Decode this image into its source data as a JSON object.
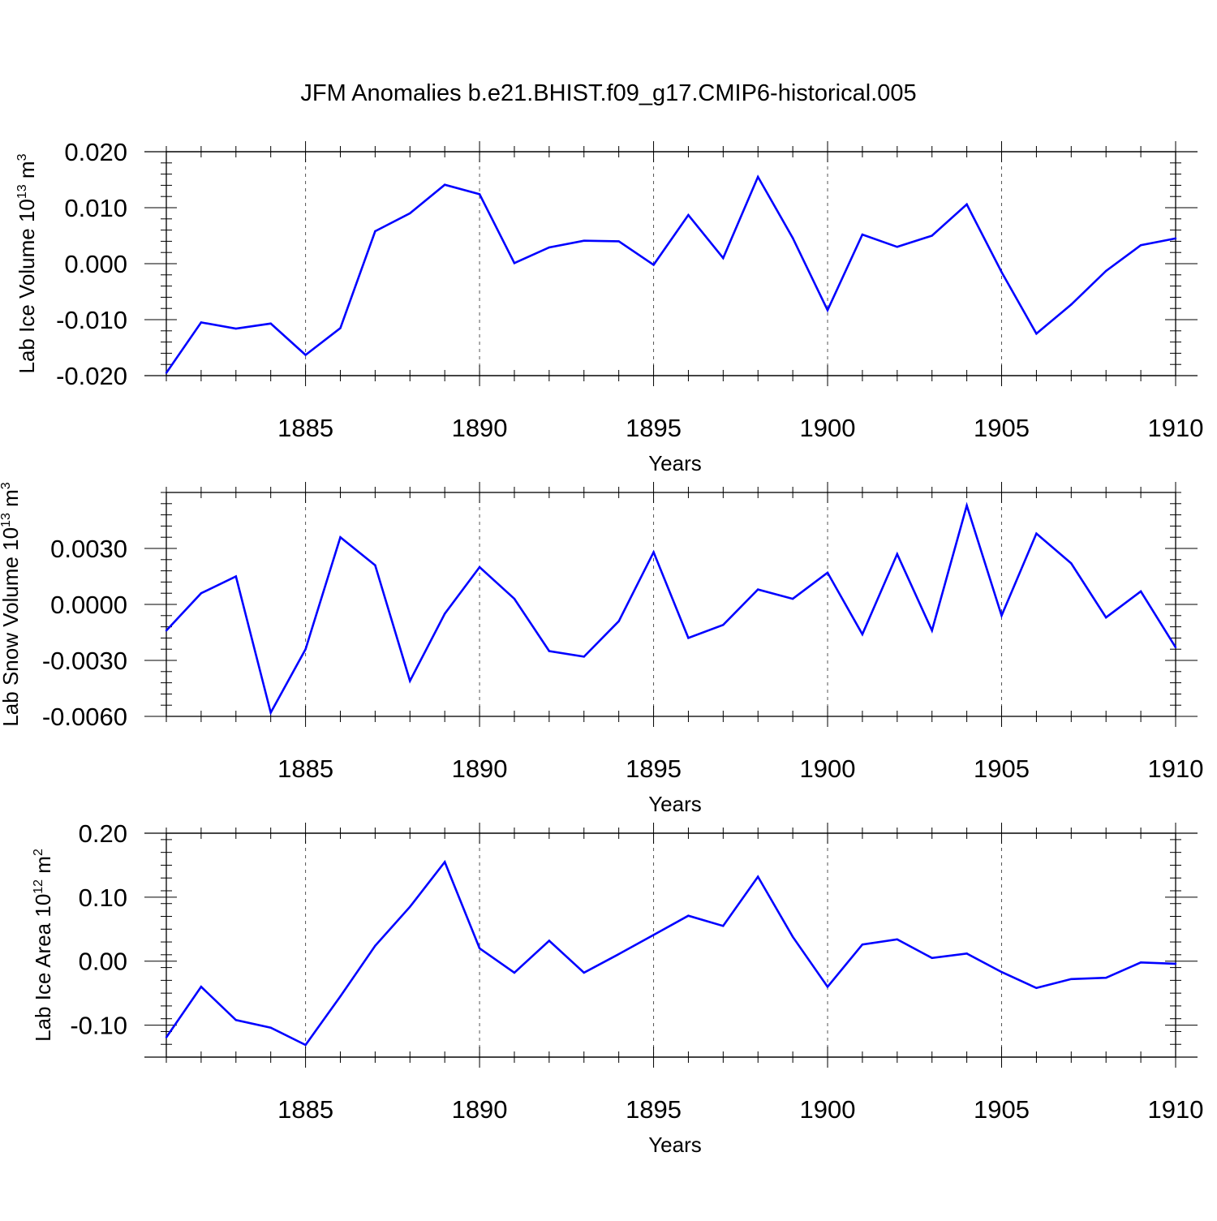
{
  "title": "JFM Anomalies b.e21.BHIST.f09_g17.CMIP6-historical.005",
  "colors": {
    "line": "#0000ff",
    "axis": "#000000",
    "grid": "#555555"
  },
  "chart_data": [
    {
      "type": "line",
      "ylabel": "Lab Ice Volume 10",
      "ylabel_exp": "13",
      "ylabel_unit": " m",
      "ylabel_unit_exp": "3",
      "xlabel": "Years",
      "xlim": [
        1881,
        1910
      ],
      "ylim": [
        -0.02,
        0.02
      ],
      "yticks": [
        -0.02,
        -0.01,
        0.0,
        0.01,
        0.02
      ],
      "ytick_labels": [
        "-0.020",
        "-0.010",
        "0.000",
        "0.010",
        "0.020"
      ],
      "xticks": [
        1885,
        1890,
        1895,
        1900,
        1905,
        1910
      ],
      "xtick_labels": [
        "1885",
        "1890",
        "1895",
        "1900",
        "1905",
        "1910"
      ],
      "grid_x": [
        1885,
        1890,
        1895,
        1900,
        1905
      ],
      "x": [
        1881,
        1882,
        1883,
        1884,
        1885,
        1886,
        1887,
        1888,
        1889,
        1890,
        1891,
        1892,
        1893,
        1894,
        1895,
        1896,
        1897,
        1898,
        1899,
        1900,
        1901,
        1902,
        1903,
        1904,
        1905,
        1906,
        1907,
        1908,
        1909,
        1910
      ],
      "series": [
        {
          "name": "Lab Ice Volume",
          "values": [
            -0.0195,
            -0.0105,
            -0.0116,
            -0.0107,
            -0.0163,
            -0.0115,
            0.0058,
            0.009,
            0.0141,
            0.0124,
            0.0001,
            0.0029,
            0.0041,
            0.004,
            -0.0002,
            0.0087,
            0.001,
            0.0155,
            0.0046,
            -0.0083,
            0.0052,
            0.003,
            0.005,
            0.0106,
            -0.0015,
            -0.0125,
            -0.0073,
            -0.0013,
            0.0033,
            0.0045
          ]
        }
      ]
    },
    {
      "type": "line",
      "ylabel": "Lab Snow Volume 10",
      "ylabel_exp": "13",
      "ylabel_unit": " m",
      "ylabel_unit_exp": "3",
      "xlabel": "Years",
      "xlim": [
        1881,
        1910
      ],
      "ylim": [
        -0.006,
        0.006
      ],
      "yticks": [
        -0.006,
        -0.003,
        0.0,
        0.003
      ],
      "ytick_labels": [
        "-0.0060",
        "-0.0030",
        "0.0000",
        "0.0030"
      ],
      "xticks": [
        1885,
        1890,
        1895,
        1900,
        1905,
        1910
      ],
      "xtick_labels": [
        "1885",
        "1890",
        "1895",
        "1900",
        "1905",
        "1910"
      ],
      "grid_x": [
        1885,
        1890,
        1895,
        1900,
        1905
      ],
      "x": [
        1881,
        1882,
        1883,
        1884,
        1885,
        1886,
        1887,
        1888,
        1889,
        1890,
        1891,
        1892,
        1893,
        1894,
        1895,
        1896,
        1897,
        1898,
        1899,
        1900,
        1901,
        1902,
        1903,
        1904,
        1905,
        1906,
        1907,
        1908,
        1909,
        1910
      ],
      "series": [
        {
          "name": "Lab Snow Volume",
          "values": [
            -0.0014,
            0.0006,
            0.0015,
            -0.0058,
            -0.0024,
            0.0036,
            0.0021,
            -0.0041,
            -0.0005,
            0.002,
            0.0003,
            -0.0025,
            -0.0028,
            -0.0009,
            0.0028,
            -0.0018,
            -0.0011,
            0.0008,
            0.0003,
            0.0017,
            -0.0016,
            0.0027,
            -0.0014,
            0.0053,
            -0.0006,
            0.0038,
            0.0022,
            -0.0007,
            0.0007,
            -0.0023
          ]
        }
      ]
    },
    {
      "type": "line",
      "ylabel": "Lab Ice Area 10",
      "ylabel_exp": "12",
      "ylabel_unit": " m",
      "ylabel_unit_exp": "2",
      "xlabel": "Years",
      "xlim": [
        1881,
        1910
      ],
      "ylim": [
        -0.15,
        0.2
      ],
      "yticks": [
        -0.1,
        0.0,
        0.1,
        0.2
      ],
      "ytick_labels": [
        "-0.10",
        "0.00",
        "0.10",
        "0.20"
      ],
      "xticks": [
        1885,
        1890,
        1895,
        1900,
        1905,
        1910
      ],
      "xtick_labels": [
        "1885",
        "1890",
        "1895",
        "1900",
        "1905",
        "1910"
      ],
      "grid_x": [
        1885,
        1890,
        1895,
        1900,
        1905
      ],
      "x": [
        1881,
        1882,
        1883,
        1884,
        1885,
        1886,
        1887,
        1888,
        1889,
        1890,
        1891,
        1892,
        1893,
        1894,
        1895,
        1896,
        1897,
        1898,
        1899,
        1900,
        1901,
        1902,
        1903,
        1904,
        1905,
        1906,
        1907,
        1908,
        1909,
        1910
      ],
      "series": [
        {
          "name": "Lab Ice Area",
          "values": [
            -0.119,
            -0.04,
            -0.092,
            -0.104,
            -0.131,
            -0.055,
            0.024,
            0.085,
            0.155,
            0.02,
            -0.018,
            0.032,
            -0.018,
            0.011,
            0.041,
            0.071,
            0.055,
            0.132,
            0.038,
            -0.04,
            0.026,
            0.034,
            0.005,
            0.012,
            -0.017,
            -0.042,
            -0.028,
            -0.026,
            -0.002,
            -0.004
          ]
        }
      ]
    }
  ]
}
